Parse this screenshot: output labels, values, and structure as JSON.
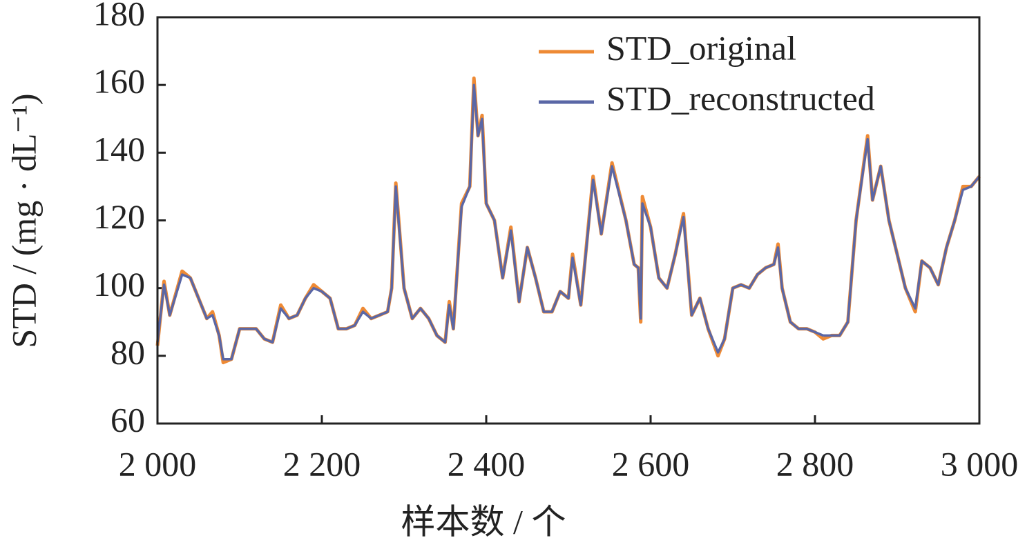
{
  "chart_data": {
    "type": "line",
    "xlabel": "样本数 / 个",
    "ylabel": "STD / (mg · dL⁻¹)",
    "x": [
      2000,
      2008,
      2015,
      2030,
      2040,
      2050,
      2060,
      2067,
      2075,
      2080,
      2090,
      2100,
      2110,
      2120,
      2130,
      2140,
      2150,
      2160,
      2170,
      2180,
      2190,
      2200,
      2210,
      2220,
      2230,
      2240,
      2250,
      2260,
      2270,
      2280,
      2285,
      2290,
      2300,
      2310,
      2320,
      2330,
      2340,
      2350,
      2355,
      2360,
      2370,
      2380,
      2385,
      2390,
      2395,
      2400,
      2410,
      2420,
      2430,
      2440,
      2450,
      2460,
      2470,
      2480,
      2490,
      2500,
      2505,
      2515,
      2530,
      2540,
      2553,
      2570,
      2580,
      2585,
      2588,
      2590,
      2600,
      2610,
      2620,
      2630,
      2640,
      2650,
      2660,
      2670,
      2682,
      2690,
      2700,
      2710,
      2720,
      2730,
      2740,
      2750,
      2755,
      2760,
      2770,
      2780,
      2790,
      2800,
      2810,
      2820,
      2830,
      2840,
      2850,
      2864,
      2870,
      2880,
      2890,
      2900,
      2910,
      2922,
      2930,
      2940,
      2950,
      2960,
      2970,
      2980,
      2990,
      3000
    ],
    "series": [
      {
        "name": "STD_original",
        "color": "#ee8a35",
        "values": [
          83,
          102,
          92,
          105,
          103,
          97,
          91,
          93,
          86,
          78,
          79,
          88,
          88,
          88,
          85,
          84,
          95,
          91,
          92,
          97,
          101,
          99,
          97,
          88,
          88,
          89,
          94,
          91,
          92,
          93,
          100,
          131,
          100,
          91,
          94,
          91,
          86,
          84,
          96,
          88,
          125,
          130,
          162,
          145,
          151,
          125,
          120,
          103,
          118,
          96,
          112,
          103,
          93,
          93,
          99,
          97,
          110,
          95,
          133,
          116,
          137,
          120,
          107,
          106,
          90,
          127,
          118,
          103,
          100,
          110,
          122,
          92,
          97,
          88,
          80,
          85,
          100,
          101,
          100,
          104,
          106,
          107,
          113,
          100,
          90,
          88,
          88,
          87,
          85,
          86,
          86,
          90,
          120,
          145,
          126,
          136,
          120,
          110,
          100,
          93,
          108,
          106,
          101,
          112,
          120,
          130,
          130,
          133
        ]
      },
      {
        "name": "STD_reconstructed",
        "color": "#5a67a6",
        "values": [
          84,
          101,
          92,
          104,
          103,
          97,
          91,
          92,
          86,
          79,
          79,
          88,
          88,
          88,
          85,
          84,
          94,
          91,
          92,
          97,
          100,
          99,
          97,
          88,
          88,
          89,
          93,
          91,
          92,
          93,
          100,
          130,
          100,
          91,
          94,
          91,
          86,
          84,
          95,
          88,
          124,
          130,
          160,
          145,
          150,
          125,
          120,
          103,
          117,
          96,
          112,
          103,
          93,
          93,
          99,
          97,
          109,
          95,
          132,
          116,
          136,
          120,
          107,
          106,
          91,
          125,
          118,
          103,
          100,
          110,
          121,
          92,
          97,
          88,
          81,
          85,
          100,
          101,
          100,
          104,
          106,
          107,
          112,
          100,
          90,
          88,
          88,
          87,
          86,
          86,
          86,
          90,
          120,
          144,
          126,
          136,
          120,
          110,
          100,
          94,
          108,
          106,
          101,
          112,
          120,
          129,
          130,
          133
        ]
      }
    ],
    "xlim": [
      2000,
      3000
    ],
    "xticks": [
      {
        "value": 2000,
        "label": "2 000"
      },
      {
        "value": 2200,
        "label": "2 200"
      },
      {
        "value": 2400,
        "label": "2 400"
      },
      {
        "value": 2600,
        "label": "2 600"
      },
      {
        "value": 2800,
        "label": "2 800"
      },
      {
        "value": 3000,
        "label": "3 000"
      }
    ],
    "ylim": [
      60,
      180
    ],
    "yticks": [
      60,
      80,
      100,
      120,
      140,
      160,
      180
    ],
    "legend": "upper right"
  }
}
